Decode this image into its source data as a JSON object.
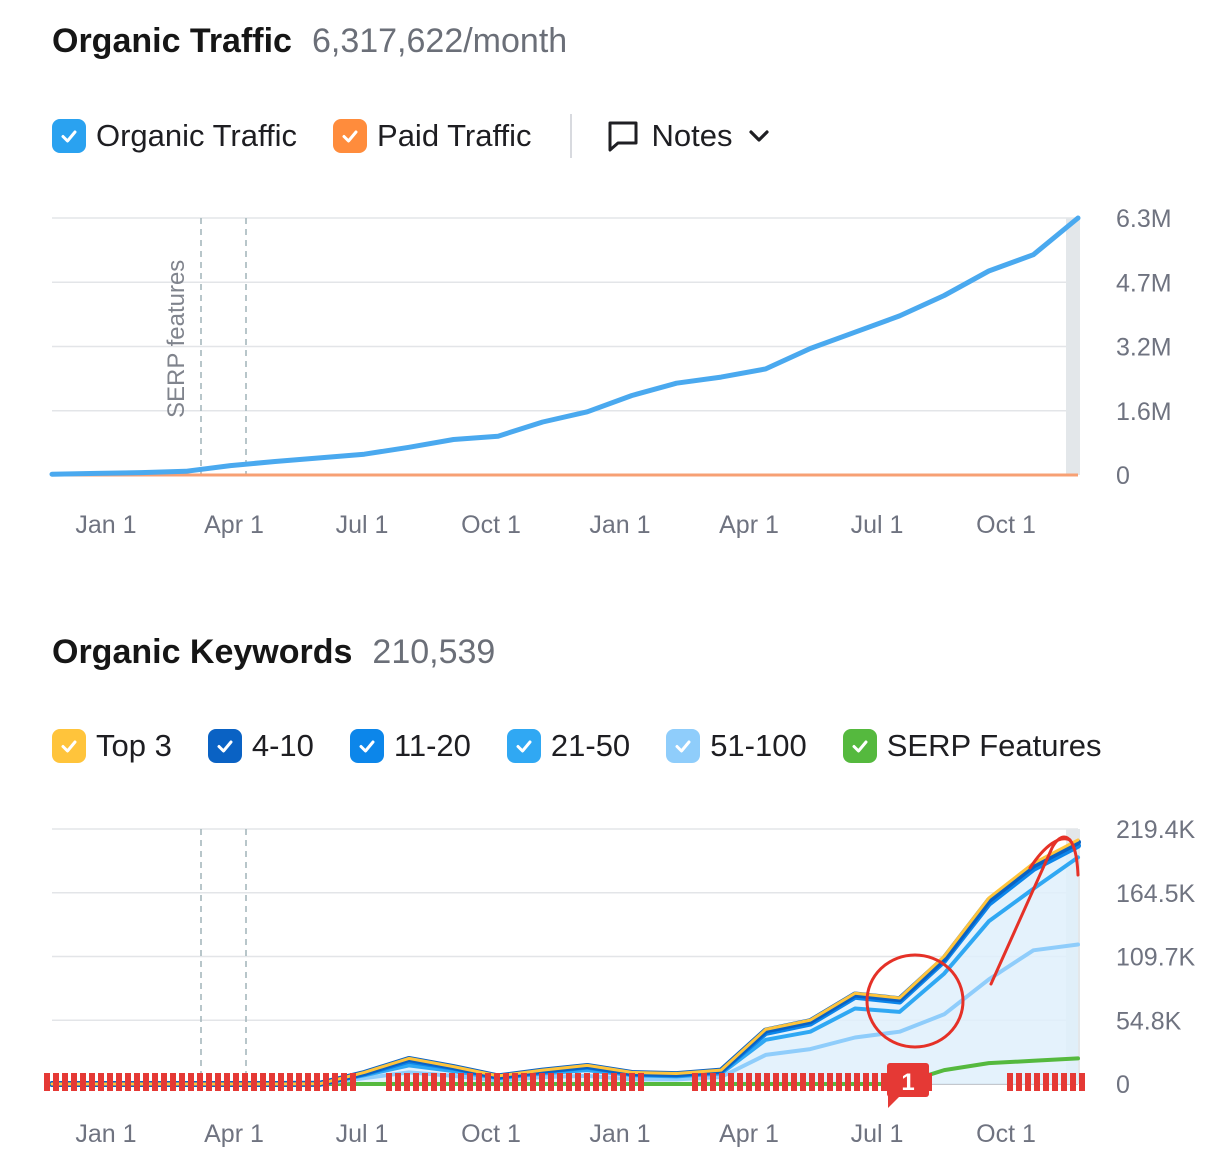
{
  "traffic": {
    "title": "Organic Traffic",
    "value": "6,317,622/month",
    "legend": [
      {
        "label": "Organic Traffic",
        "color": "#2aa2f0"
      },
      {
        "label": "Paid Traffic",
        "color": "#ff8c3c"
      }
    ],
    "notes_label": "Notes",
    "annotation": "SERP features"
  },
  "keywords": {
    "title": "Organic Keywords",
    "value": "210,539",
    "legend": [
      {
        "label": "Top 3",
        "color": "#ffc43b"
      },
      {
        "label": "4-10",
        "color": "#0a62c4"
      },
      {
        "label": "11-20",
        "color": "#0c86ea"
      },
      {
        "label": "21-50",
        "color": "#30a8f3"
      },
      {
        "label": "51-100",
        "color": "#8fcdfb"
      },
      {
        "label": "SERP Features",
        "color": "#55b93e"
      }
    ],
    "marker_label": "1"
  },
  "chart_data": [
    {
      "type": "line",
      "x": [
        "Jan 1",
        "Feb 1",
        "Mar 1",
        "Apr 1",
        "May 1",
        "Jun 1",
        "Jul 1",
        "Aug 1",
        "Sep 1",
        "Oct 1",
        "Nov 1",
        "Dec 1",
        "Jan 1",
        "Feb 1",
        "Mar 1",
        "Apr 1",
        "May 1",
        "Jun 1",
        "Jul 1",
        "Aug 1",
        "Sep 1",
        "Oct 1",
        "Nov 1",
        "Dec 1"
      ],
      "xticks": [
        "Jan 1",
        "Apr 1",
        "Jul 1",
        "Oct 1",
        "Jan 1",
        "Apr 1",
        "Jul 1",
        "Oct 1"
      ],
      "yticks": [
        "0",
        "1.6M",
        "3.2M",
        "4.7M",
        "6.3M"
      ],
      "ylim": [
        0,
        6300000
      ],
      "legend_position": "top-left",
      "grid": true,
      "series": [
        {
          "name": "Organic Traffic",
          "color": "#4aa9ef",
          "values": [
            20000,
            40000,
            60000,
            90000,
            230000,
            330000,
            420000,
            510000,
            680000,
            870000,
            950000,
            1300000,
            1550000,
            1950000,
            2250000,
            2400000,
            2600000,
            3100000,
            3500000,
            3900000,
            4400000,
            5000000,
            5400000,
            6300000
          ]
        },
        {
          "name": "Paid Traffic",
          "color": "#f7a074",
          "values": [
            0,
            0,
            0,
            0,
            0,
            0,
            0,
            0,
            0,
            0,
            0,
            0,
            0,
            0,
            0,
            0,
            0,
            0,
            0,
            0,
            0,
            0,
            0,
            0
          ]
        }
      ]
    },
    {
      "type": "area",
      "x": [
        "Jan 1",
        "Feb 1",
        "Mar 1",
        "Apr 1",
        "May 1",
        "Jun 1",
        "Jul 1",
        "Aug 1",
        "Sep 1",
        "Oct 1",
        "Nov 1",
        "Dec 1",
        "Jan 1",
        "Feb 1",
        "Mar 1",
        "Apr 1",
        "May 1",
        "Jun 1",
        "Jul 1",
        "Aug 1",
        "Sep 1",
        "Oct 1",
        "Nov 1",
        "Dec 1"
      ],
      "xticks": [
        "Jan 1",
        "Apr 1",
        "Jul 1",
        "Oct 1",
        "Jan 1",
        "Apr 1",
        "Jul 1",
        "Oct 1"
      ],
      "yticks": [
        "0",
        "54.8K",
        "109.7K",
        "164.5K",
        "219.4K"
      ],
      "ylim": [
        0,
        219400
      ],
      "legend_position": "top-left",
      "grid": true,
      "series": [
        {
          "name": "Top 3",
          "color": "#ffc43b",
          "values": [
            0,
            0,
            0,
            0,
            0,
            0,
            200,
            10000,
            22000,
            15000,
            7000,
            12000,
            16000,
            10000,
            9000,
            12000,
            47000,
            55000,
            78000,
            74000,
            110000,
            160000,
            190000,
            210000
          ]
        },
        {
          "name": "4-10",
          "color": "#0a62c4",
          "values": [
            0,
            0,
            0,
            0,
            0,
            0,
            200,
            9500,
            21500,
            14500,
            6500,
            11500,
            15500,
            9500,
            8500,
            11500,
            46000,
            54000,
            77000,
            73000,
            108000,
            158000,
            188000,
            208000
          ]
        },
        {
          "name": "11-20",
          "color": "#0c86ea",
          "values": [
            0,
            0,
            0,
            0,
            0,
            0,
            200,
            9000,
            20000,
            14000,
            6000,
            11000,
            15000,
            9000,
            8000,
            11000,
            44000,
            52000,
            75000,
            71000,
            106000,
            155000,
            185000,
            205000
          ]
        },
        {
          "name": "21-50",
          "color": "#30a8f3",
          "values": [
            0,
            0,
            0,
            0,
            0,
            0,
            150,
            7500,
            16000,
            11000,
            5000,
            9000,
            12000,
            7500,
            6500,
            9000,
            38000,
            45000,
            65000,
            62000,
            95000,
            140000,
            168000,
            195000
          ]
        },
        {
          "name": "51-100",
          "color": "#8fcdfb",
          "values": [
            0,
            0,
            0,
            0,
            0,
            0,
            100,
            5000,
            10000,
            7000,
            3000,
            6000,
            7000,
            4000,
            4000,
            6000,
            25000,
            30000,
            40000,
            45000,
            60000,
            90000,
            115000,
            120000
          ]
        },
        {
          "name": "SERP Features",
          "color": "#55b93e",
          "values": [
            0,
            0,
            0,
            0,
            0,
            0,
            0,
            0,
            0,
            0,
            0,
            0,
            0,
            0,
            0,
            0,
            0,
            0,
            0,
            0,
            12000,
            18000,
            20000,
            22000
          ]
        }
      ]
    }
  ]
}
